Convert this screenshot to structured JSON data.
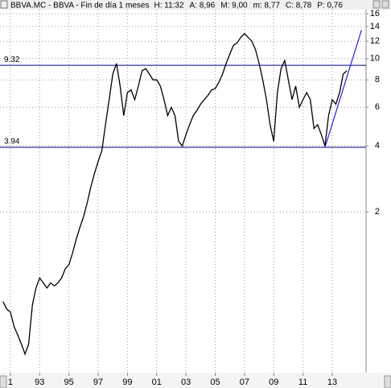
{
  "chart_data": {
    "type": "line",
    "title": "BBVA.MC - BBVA - Fin de día 1 meses",
    "header_fields": [
      "H: 11:32",
      "A: 8,96",
      "M: 9,00",
      "m: 8,77",
      "C: 8,78",
      "P: 0,76"
    ],
    "header_colors": [
      "#000000",
      "#000000",
      "#000000",
      "#000000",
      "#000000",
      "#e00000"
    ],
    "log_scale": true,
    "grid": true,
    "color": "#000000",
    "ylim": [
      0.37,
      18.5
    ],
    "yticks": [
      2,
      4,
      6,
      8,
      10,
      12,
      14,
      16
    ],
    "xlim": [
      1990.29,
      2015.31
    ],
    "xticks": [
      {
        "value": 1991,
        "label": "1"
      },
      {
        "value": 1993,
        "label": "93"
      },
      {
        "value": 1995,
        "label": "95"
      },
      {
        "value": 1997,
        "label": "97"
      },
      {
        "value": 1999,
        "label": "99"
      },
      {
        "value": 2001,
        "label": "01"
      },
      {
        "value": 2003,
        "label": "03"
      },
      {
        "value": 2005,
        "label": "05"
      },
      {
        "value": 2007,
        "label": "07"
      },
      {
        "value": 2009,
        "label": "09"
      },
      {
        "value": 2011,
        "label": "11"
      },
      {
        "value": 2013,
        "label": "13"
      }
    ],
    "hlines": [
      9.32,
      3.94
    ],
    "hline_color": "#00008b",
    "trend_line": {
      "x": [
        2012.5,
        2015.0
      ],
      "values": [
        3.94,
        13.5
      ],
      "color": "#2020e0"
    },
    "x": [
      1990.5,
      1990.75,
      1991.0,
      1991.25,
      1991.5,
      1991.75,
      1992.0,
      1992.25,
      1992.5,
      1992.75,
      1993.0,
      1993.25,
      1993.5,
      1993.75,
      1994.0,
      1994.25,
      1994.5,
      1994.75,
      1995.0,
      1995.25,
      1995.5,
      1995.75,
      1996.0,
      1996.25,
      1996.5,
      1996.75,
      1997.0,
      1997.25,
      1997.5,
      1997.75,
      1998.0,
      1998.25,
      1998.5,
      1998.75,
      1999.0,
      1999.25,
      1999.5,
      1999.75,
      2000.0,
      2000.25,
      2000.5,
      2000.75,
      2001.0,
      2001.25,
      2001.5,
      2001.75,
      2002.0,
      2002.25,
      2002.5,
      2002.75,
      2003.0,
      2003.25,
      2003.5,
      2003.75,
      2004.0,
      2004.25,
      2004.5,
      2004.75,
      2005.0,
      2005.25,
      2005.5,
      2005.75,
      2006.0,
      2006.25,
      2006.5,
      2006.75,
      2007.0,
      2007.25,
      2007.5,
      2007.75,
      2008.0,
      2008.25,
      2008.5,
      2008.75,
      2009.0,
      2009.25,
      2009.5,
      2009.75,
      2010.0,
      2010.25,
      2010.5,
      2010.75,
      2011.0,
      2011.25,
      2011.5,
      2011.75,
      2012.0,
      2012.25,
      2012.5,
      2012.75,
      2013.0,
      2013.25,
      2013.5,
      2013.75,
      2014.0
    ],
    "values": [
      0.78,
      0.72,
      0.7,
      0.6,
      0.55,
      0.5,
      0.45,
      0.5,
      0.75,
      0.9,
      1.0,
      0.95,
      0.9,
      0.95,
      0.92,
      0.95,
      1.0,
      1.1,
      1.15,
      1.3,
      1.5,
      1.7,
      1.9,
      2.2,
      2.6,
      3.0,
      3.4,
      3.8,
      5.0,
      6.5,
      8.5,
      9.5,
      7.5,
      5.5,
      7.0,
      7.2,
      6.5,
      7.5,
      8.8,
      9.0,
      8.5,
      8.0,
      8.0,
      7.5,
      6.5,
      5.5,
      6.0,
      5.5,
      4.2,
      4.0,
      4.5,
      5.0,
      5.5,
      5.8,
      6.2,
      6.5,
      6.8,
      7.2,
      7.3,
      7.8,
      8.5,
      9.5,
      10.5,
      11.5,
      11.8,
      12.5,
      13.0,
      12.5,
      12.0,
      11.0,
      9.5,
      8.0,
      6.5,
      5.0,
      4.2,
      7.0,
      9.0,
      9.8,
      8.0,
      6.5,
      7.5,
      6.0,
      6.5,
      7.0,
      6.5,
      4.8,
      5.0,
      4.5,
      4.0,
      5.5,
      6.5,
      6.2,
      7.0,
      8.5,
      8.8
    ]
  }
}
